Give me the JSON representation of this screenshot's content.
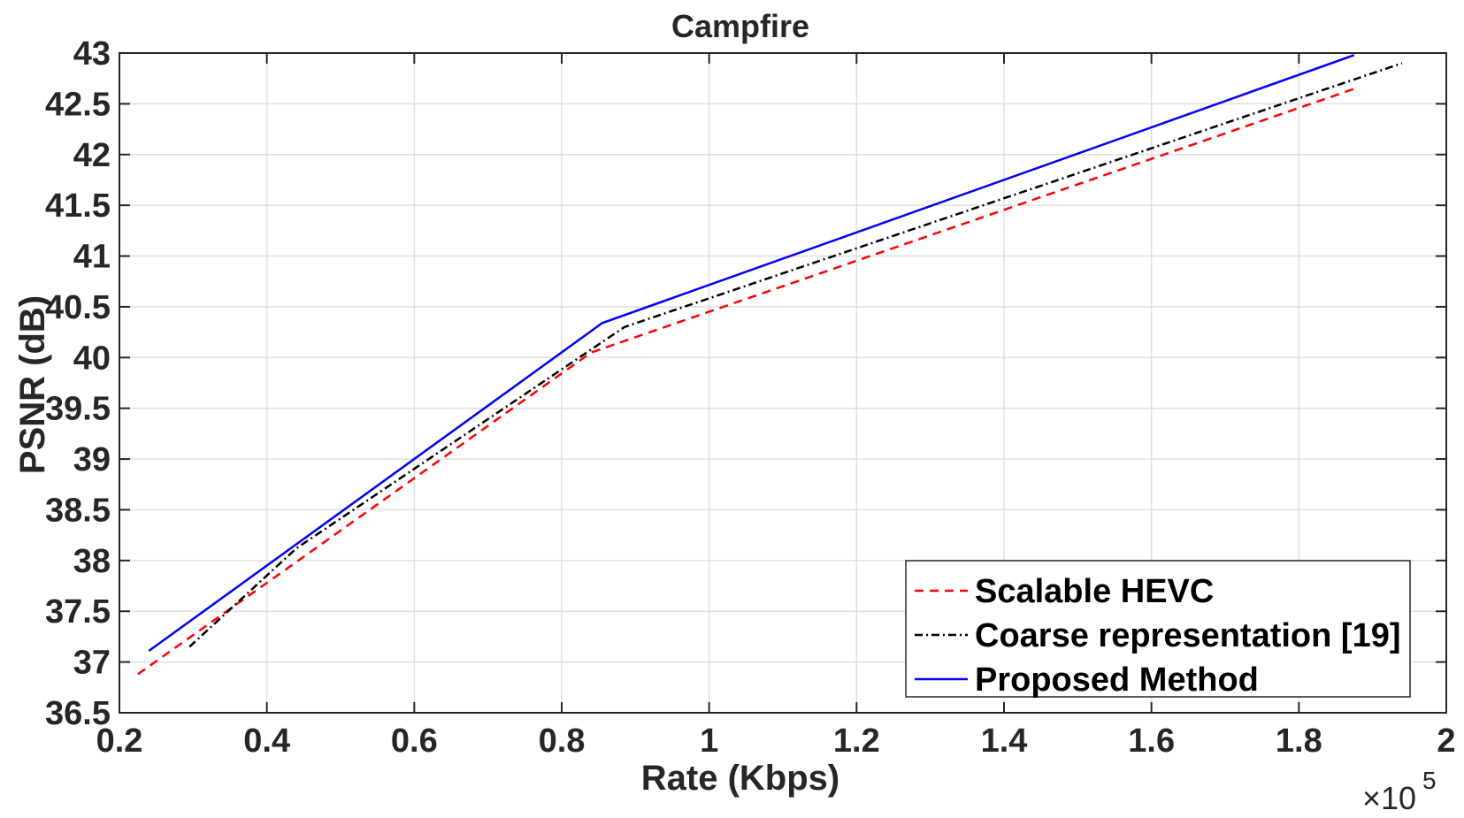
{
  "chart_data": {
    "type": "line",
    "title": "Campfire",
    "xlabel": "Rate (Kbps)",
    "ylabel": "PSNR (dB)",
    "x_multiplier_prefix": "×10",
    "x_multiplier_exponent": "5",
    "xlim": [
      0.2,
      2.0
    ],
    "ylim": [
      36.5,
      43
    ],
    "xticks": [
      0.2,
      0.4,
      0.6,
      0.8,
      1.0,
      1.2,
      1.4,
      1.6,
      1.8,
      2.0
    ],
    "xtick_labels": [
      "0.2",
      "0.4",
      "0.6",
      "0.8",
      "1",
      "1.2",
      "1.4",
      "1.6",
      "1.8",
      "2"
    ],
    "yticks": [
      36.5,
      37,
      37.5,
      38,
      38.5,
      39,
      39.5,
      40,
      40.5,
      41,
      41.5,
      42,
      42.5,
      43
    ],
    "ytick_labels": [
      "36.5",
      "37",
      "37.5",
      "38",
      "38.5",
      "39",
      "39.5",
      "40",
      "40.5",
      "41",
      "41.5",
      "42",
      "42.5",
      "43"
    ],
    "grid": true,
    "legend_position": "bottom-right",
    "series": [
      {
        "name": "Scalable HEVC",
        "color": "#ff0000",
        "style": "dashed",
        "x": [
          0.225,
          0.435,
          0.84,
          1.88
        ],
        "y": [
          36.88,
          37.96,
          40.05,
          42.66
        ]
      },
      {
        "name": "Coarse representation [19]",
        "color": "#000000",
        "style": "dashdot",
        "x": [
          0.295,
          0.44,
          0.885,
          1.94
        ],
        "y": [
          37.15,
          38.12,
          40.3,
          42.9
        ]
      },
      {
        "name": "Proposed Method",
        "color": "#0000ff",
        "style": "solid",
        "x": [
          0.24,
          0.855,
          1.875
        ],
        "y": [
          37.11,
          40.34,
          42.98
        ]
      }
    ]
  }
}
